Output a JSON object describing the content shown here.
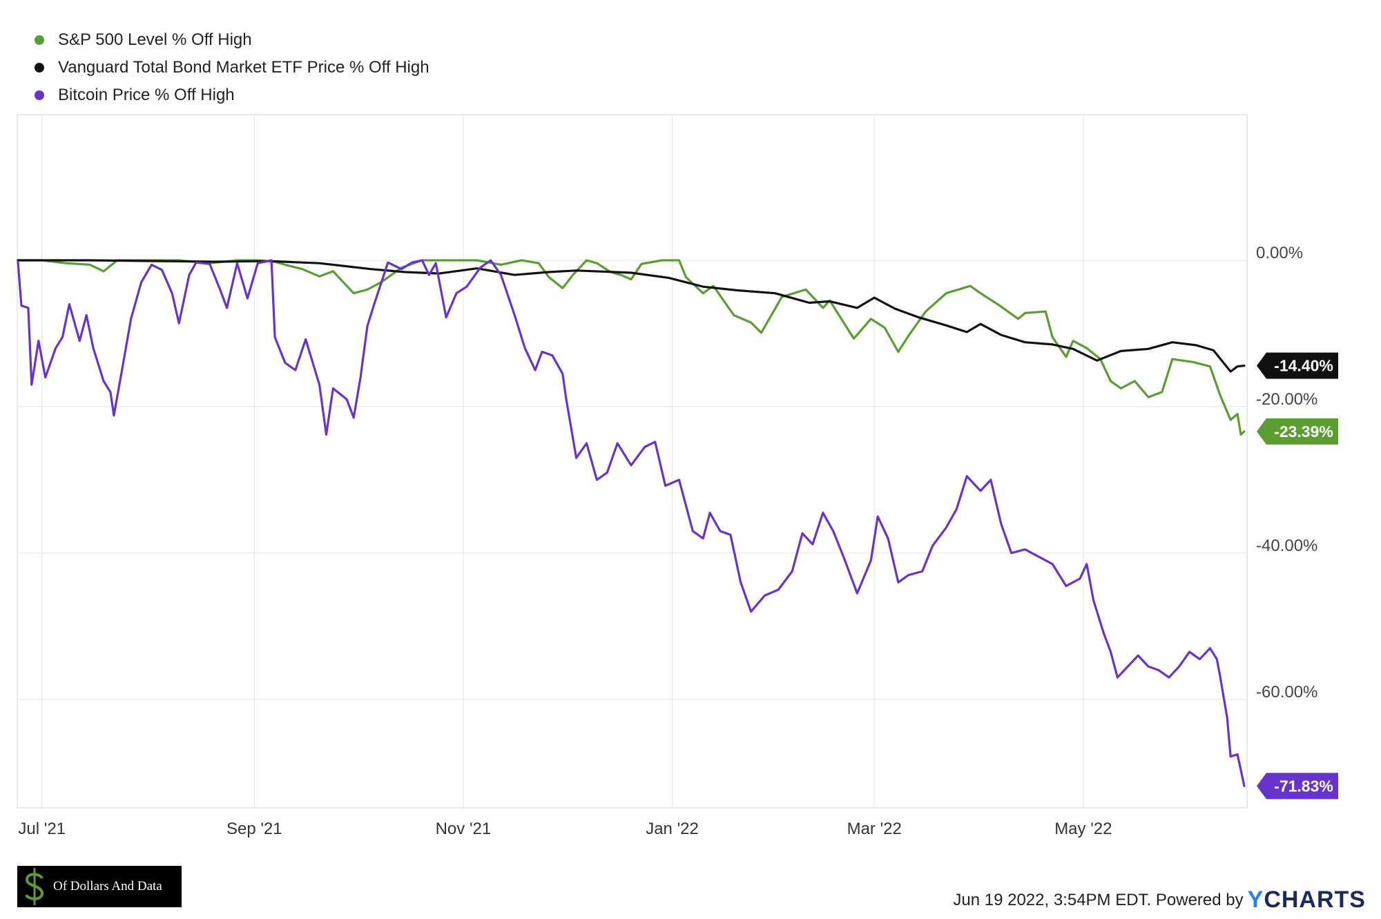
{
  "chart_data": {
    "type": "line",
    "title": "",
    "xlabel": "",
    "ylabel": "",
    "ylim": [
      -75,
      20
    ],
    "x_range": [
      "2021-06-24",
      "2022-06-17"
    ],
    "x_ticks": [
      {
        "date": "2021-07-01",
        "label": "Jul '21"
      },
      {
        "date": "2021-09-01",
        "label": "Sep '21"
      },
      {
        "date": "2021-11-01",
        "label": "Nov '21"
      },
      {
        "date": "2022-01-01",
        "label": "Jan '22"
      },
      {
        "date": "2022-03-01",
        "label": "Mar '22"
      },
      {
        "date": "2022-05-01",
        "label": "May '22"
      }
    ],
    "y_ticks": [
      {
        "value": 0,
        "label": "0.00%"
      },
      {
        "value": -20,
        "label": "-20.00%"
      },
      {
        "value": -40,
        "label": "-40.00%"
      },
      {
        "value": -60,
        "label": "-60.00%"
      }
    ],
    "grid": true,
    "legend_position": "top-left",
    "series": [
      {
        "name": "S&P 500 Level % Off High",
        "color": "#5a9e32",
        "end_label": "-23.39%",
        "points": [
          [
            "2021-06-24",
            0
          ],
          [
            "2021-07-01",
            0
          ],
          [
            "2021-07-08",
            -0.4
          ],
          [
            "2021-07-15",
            -0.6
          ],
          [
            "2021-07-19",
            -1.5
          ],
          [
            "2021-07-23",
            0
          ],
          [
            "2021-08-01",
            0
          ],
          [
            "2021-08-10",
            0
          ],
          [
            "2021-08-19",
            -0.4
          ],
          [
            "2021-08-27",
            0
          ],
          [
            "2021-09-02",
            0
          ],
          [
            "2021-09-07",
            -0.2
          ],
          [
            "2021-09-10",
            -0.6
          ],
          [
            "2021-09-15",
            -1.2
          ],
          [
            "2021-09-20",
            -2.2
          ],
          [
            "2021-09-24",
            -1.5
          ],
          [
            "2021-09-30",
            -4.5
          ],
          [
            "2021-10-04",
            -4.0
          ],
          [
            "2021-10-08",
            -3.0
          ],
          [
            "2021-10-14",
            -1.0
          ],
          [
            "2021-10-20",
            0
          ],
          [
            "2021-10-29",
            0
          ],
          [
            "2021-11-05",
            0
          ],
          [
            "2021-11-12",
            -0.6
          ],
          [
            "2021-11-18",
            0
          ],
          [
            "2021-11-23",
            -0.4
          ],
          [
            "2021-11-26",
            -2.3
          ],
          [
            "2021-11-30",
            -3.8
          ],
          [
            "2021-12-03",
            -2.0
          ],
          [
            "2021-12-07",
            0
          ],
          [
            "2021-12-10",
            -0.4
          ],
          [
            "2021-12-14",
            -1.6
          ],
          [
            "2021-12-17",
            -2.0
          ],
          [
            "2021-12-20",
            -2.6
          ],
          [
            "2021-12-23",
            -0.5
          ],
          [
            "2021-12-29",
            0
          ],
          [
            "2022-01-03",
            0
          ],
          [
            "2022-01-05",
            -2.3
          ],
          [
            "2022-01-10",
            -4.5
          ],
          [
            "2022-01-13",
            -3.5
          ],
          [
            "2022-01-19",
            -7.5
          ],
          [
            "2022-01-24",
            -8.5
          ],
          [
            "2022-01-27",
            -9.9
          ],
          [
            "2022-02-02",
            -5.0
          ],
          [
            "2022-02-09",
            -4.0
          ],
          [
            "2022-02-14",
            -6.5
          ],
          [
            "2022-02-16",
            -5.5
          ],
          [
            "2022-02-23",
            -10.7
          ],
          [
            "2022-02-28",
            -8.0
          ],
          [
            "2022-03-04",
            -9.2
          ],
          [
            "2022-03-08",
            -12.5
          ],
          [
            "2022-03-11",
            -10.3
          ],
          [
            "2022-03-16",
            -7.0
          ],
          [
            "2022-03-22",
            -4.5
          ],
          [
            "2022-03-29",
            -3.5
          ],
          [
            "2022-04-01",
            -4.5
          ],
          [
            "2022-04-06",
            -6.0
          ],
          [
            "2022-04-12",
            -8.0
          ],
          [
            "2022-04-14",
            -7.2
          ],
          [
            "2022-04-20",
            -7.0
          ],
          [
            "2022-04-22",
            -10.5
          ],
          [
            "2022-04-26",
            -13.2
          ],
          [
            "2022-04-28",
            -11.0
          ],
          [
            "2022-05-02",
            -12.0
          ],
          [
            "2022-05-06",
            -13.5
          ],
          [
            "2022-05-09",
            -16.5
          ],
          [
            "2022-05-12",
            -17.5
          ],
          [
            "2022-05-16",
            -16.5
          ],
          [
            "2022-05-20",
            -18.7
          ],
          [
            "2022-05-24",
            -18.0
          ],
          [
            "2022-05-27",
            -13.5
          ],
          [
            "2022-06-02",
            -13.9
          ],
          [
            "2022-06-07",
            -14.5
          ],
          [
            "2022-06-10",
            -18.5
          ],
          [
            "2022-06-13",
            -21.8
          ],
          [
            "2022-06-15",
            -21.0
          ],
          [
            "2022-06-16",
            -23.8
          ],
          [
            "2022-06-17",
            -23.39
          ]
        ]
      },
      {
        "name": "Vanguard Total Bond Market ETF Price % Off High",
        "color": "#111111",
        "end_label": "-14.40%",
        "points": [
          [
            "2021-06-24",
            0
          ],
          [
            "2021-07-15",
            0
          ],
          [
            "2021-08-04",
            -0.1
          ],
          [
            "2021-08-20",
            -0.2
          ],
          [
            "2021-09-05",
            -0.1
          ],
          [
            "2021-09-20",
            -0.4
          ],
          [
            "2021-10-05",
            -1.2
          ],
          [
            "2021-10-15",
            -1.6
          ],
          [
            "2021-10-25",
            -1.8
          ],
          [
            "2021-11-05",
            -1.1
          ],
          [
            "2021-11-16",
            -2.0
          ],
          [
            "2021-11-26",
            -1.6
          ],
          [
            "2021-12-04",
            -1.4
          ],
          [
            "2021-12-20",
            -1.7
          ],
          [
            "2021-12-31",
            -2.4
          ],
          [
            "2022-01-10",
            -3.6
          ],
          [
            "2022-01-20",
            -4.1
          ],
          [
            "2022-01-31",
            -4.5
          ],
          [
            "2022-02-10",
            -5.8
          ],
          [
            "2022-02-16",
            -5.6
          ],
          [
            "2022-02-24",
            -6.5
          ],
          [
            "2022-03-01",
            -5.1
          ],
          [
            "2022-03-07",
            -6.6
          ],
          [
            "2022-03-14",
            -7.8
          ],
          [
            "2022-03-22",
            -8.9
          ],
          [
            "2022-03-28",
            -9.8
          ],
          [
            "2022-04-01",
            -8.7
          ],
          [
            "2022-04-07",
            -10.2
          ],
          [
            "2022-04-14",
            -11.2
          ],
          [
            "2022-04-22",
            -11.5
          ],
          [
            "2022-04-28",
            -12.1
          ],
          [
            "2022-05-05",
            -13.7
          ],
          [
            "2022-05-12",
            -12.4
          ],
          [
            "2022-05-20",
            -12.1
          ],
          [
            "2022-05-27",
            -11.2
          ],
          [
            "2022-06-03",
            -11.6
          ],
          [
            "2022-06-08",
            -12.3
          ],
          [
            "2022-06-13",
            -15.2
          ],
          [
            "2022-06-15",
            -14.5
          ],
          [
            "2022-06-17",
            -14.4
          ]
        ]
      },
      {
        "name": "Bitcoin Price % Off High",
        "color": "#6633cc",
        "end_label": "-71.83%",
        "points": [
          [
            "2021-06-24",
            -0.2
          ],
          [
            "2021-06-25",
            -6.2
          ],
          [
            "2021-06-27",
            -6.5
          ],
          [
            "2021-06-28",
            -17.0
          ],
          [
            "2021-06-30",
            -11.0
          ],
          [
            "2021-07-02",
            -16.0
          ],
          [
            "2021-07-05",
            -12.0
          ],
          [
            "2021-07-07",
            -10.5
          ],
          [
            "2021-07-09",
            -6.0
          ],
          [
            "2021-07-12",
            -11.0
          ],
          [
            "2021-07-14",
            -7.5
          ],
          [
            "2021-07-16",
            -12.0
          ],
          [
            "2021-07-19",
            -16.5
          ],
          [
            "2021-07-21",
            -18.0
          ],
          [
            "2021-07-22",
            -21.2
          ],
          [
            "2021-07-24",
            -16.0
          ],
          [
            "2021-07-27",
            -8.0
          ],
          [
            "2021-07-30",
            -3.0
          ],
          [
            "2021-08-02",
            -0.6
          ],
          [
            "2021-08-05",
            -1.3
          ],
          [
            "2021-08-08",
            -4.5
          ],
          [
            "2021-08-10",
            -8.6
          ],
          [
            "2021-08-13",
            -2.0
          ],
          [
            "2021-08-15",
            -0.3
          ],
          [
            "2021-08-19",
            -0.5
          ],
          [
            "2021-08-22",
            -4.0
          ],
          [
            "2021-08-24",
            -6.5
          ],
          [
            "2021-08-27",
            -0.4
          ],
          [
            "2021-08-30",
            -5.2
          ],
          [
            "2021-09-02",
            -0.4
          ],
          [
            "2021-09-06",
            0
          ],
          [
            "2021-09-07",
            -10.5
          ],
          [
            "2021-09-10",
            -14.0
          ],
          [
            "2021-09-13",
            -15.0
          ],
          [
            "2021-09-16",
            -10.8
          ],
          [
            "2021-09-20",
            -17.0
          ],
          [
            "2021-09-22",
            -23.8
          ],
          [
            "2021-09-24",
            -17.5
          ],
          [
            "2021-09-28",
            -19.0
          ],
          [
            "2021-09-30",
            -21.5
          ],
          [
            "2021-10-02",
            -16.0
          ],
          [
            "2021-10-04",
            -9.0
          ],
          [
            "2021-10-06",
            -6.0
          ],
          [
            "2021-10-10",
            -0.3
          ],
          [
            "2021-10-14",
            -1.2
          ],
          [
            "2021-10-17",
            -0.3
          ],
          [
            "2021-10-20",
            0
          ],
          [
            "2021-10-22",
            -2.0
          ],
          [
            "2021-10-24",
            -0.4
          ],
          [
            "2021-10-27",
            -7.8
          ],
          [
            "2021-10-30",
            -4.5
          ],
          [
            "2021-11-02",
            -3.6
          ],
          [
            "2021-11-06",
            -1.0
          ],
          [
            "2021-11-09",
            0
          ],
          [
            "2021-11-12",
            -2.0
          ],
          [
            "2021-11-16",
            -7.5
          ],
          [
            "2021-11-19",
            -12.0
          ],
          [
            "2021-11-22",
            -15.0
          ],
          [
            "2021-11-24",
            -12.5
          ],
          [
            "2021-11-27",
            -13.0
          ],
          [
            "2021-11-30",
            -15.5
          ],
          [
            "2021-12-01",
            -18.8
          ],
          [
            "2021-12-04",
            -27.0
          ],
          [
            "2021-12-07",
            -25.0
          ],
          [
            "2021-12-10",
            -30.0
          ],
          [
            "2021-12-13",
            -29.0
          ],
          [
            "2021-12-16",
            -25.0
          ],
          [
            "2021-12-20",
            -28.0
          ],
          [
            "2021-12-24",
            -25.5
          ],
          [
            "2021-12-27",
            -24.8
          ],
          [
            "2021-12-30",
            -30.8
          ],
          [
            "2022-01-03",
            -30.0
          ],
          [
            "2022-01-05",
            -33.5
          ],
          [
            "2022-01-07",
            -37.0
          ],
          [
            "2022-01-10",
            -38.0
          ],
          [
            "2022-01-12",
            -34.5
          ],
          [
            "2022-01-15",
            -37.0
          ],
          [
            "2022-01-18",
            -37.5
          ],
          [
            "2022-01-21",
            -44.0
          ],
          [
            "2022-01-24",
            -48.0
          ],
          [
            "2022-01-28",
            -45.8
          ],
          [
            "2022-02-01",
            -45.0
          ],
          [
            "2022-02-05",
            -42.5
          ],
          [
            "2022-02-08",
            -37.3
          ],
          [
            "2022-02-11",
            -38.8
          ],
          [
            "2022-02-14",
            -34.5
          ],
          [
            "2022-02-17",
            -37.0
          ],
          [
            "2022-02-20",
            -40.5
          ],
          [
            "2022-02-24",
            -45.5
          ],
          [
            "2022-02-28",
            -41.0
          ],
          [
            "2022-03-02",
            -35.0
          ],
          [
            "2022-03-05",
            -38.0
          ],
          [
            "2022-03-08",
            -44.0
          ],
          [
            "2022-03-11",
            -43.0
          ],
          [
            "2022-03-15",
            -42.5
          ],
          [
            "2022-03-18",
            -39.0
          ],
          [
            "2022-03-22",
            -36.5
          ],
          [
            "2022-03-25",
            -34.0
          ],
          [
            "2022-03-28",
            -29.5
          ],
          [
            "2022-04-01",
            -31.5
          ],
          [
            "2022-04-04",
            -30.0
          ],
          [
            "2022-04-07",
            -36.0
          ],
          [
            "2022-04-10",
            -40.0
          ],
          [
            "2022-04-14",
            -39.5
          ],
          [
            "2022-04-18",
            -40.5
          ],
          [
            "2022-04-22",
            -41.5
          ],
          [
            "2022-04-26",
            -44.5
          ],
          [
            "2022-04-30",
            -43.5
          ],
          [
            "2022-05-02",
            -41.5
          ],
          [
            "2022-05-04",
            -46.5
          ],
          [
            "2022-05-07",
            -51.0
          ],
          [
            "2022-05-09",
            -53.5
          ],
          [
            "2022-05-11",
            -57.0
          ],
          [
            "2022-05-14",
            -55.5
          ],
          [
            "2022-05-17",
            -54.0
          ],
          [
            "2022-05-20",
            -55.5
          ],
          [
            "2022-05-23",
            -56.0
          ],
          [
            "2022-05-26",
            -57.0
          ],
          [
            "2022-05-29",
            -55.5
          ],
          [
            "2022-06-01",
            -53.5
          ],
          [
            "2022-06-04",
            -54.5
          ],
          [
            "2022-06-07",
            -53.0
          ],
          [
            "2022-06-09",
            -54.5
          ],
          [
            "2022-06-10",
            -57.0
          ],
          [
            "2022-06-12",
            -62.5
          ],
          [
            "2022-06-13",
            -67.8
          ],
          [
            "2022-06-15",
            -67.5
          ],
          [
            "2022-06-17",
            -71.83
          ]
        ]
      }
    ]
  },
  "footer": {
    "timestamp": "Jun 19 2022, 3:54PM EDT.",
    "powered_by": "Powered by",
    "brand_y": "Y",
    "brand_rest": "CHARTS"
  },
  "logo": {
    "text": "Of Dollars And Data",
    "bg_color": "#000000",
    "accent_color": "#5a9e32"
  }
}
